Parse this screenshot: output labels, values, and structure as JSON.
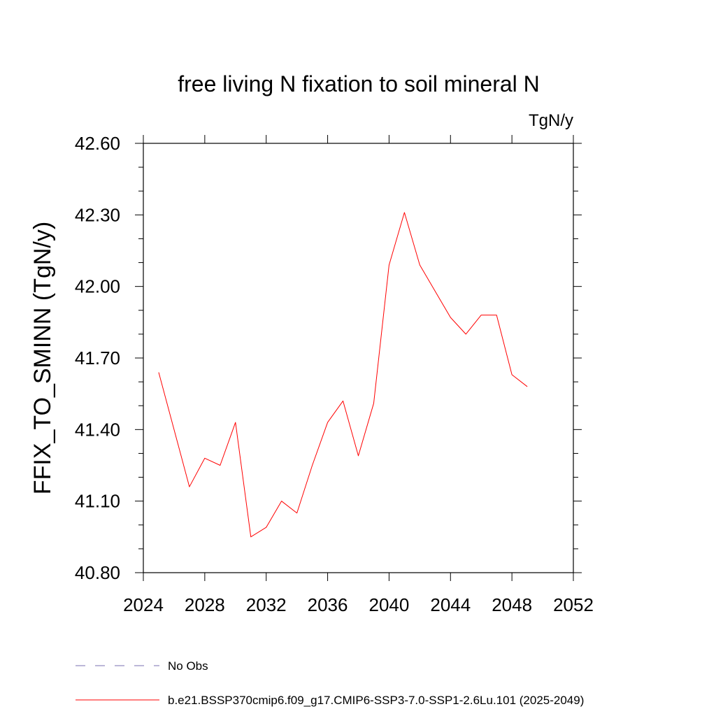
{
  "chart_data": {
    "type": "line",
    "title": "free living N fixation to soil mineral N",
    "units": "TgN/y",
    "ylabel": "FFIX_TO_SMINN  (TgN/y)",
    "xlabel": "",
    "xlim": [
      2024,
      2052
    ],
    "ylim": [
      40.8,
      42.6
    ],
    "x_ticks": [
      2024,
      2028,
      2032,
      2036,
      2040,
      2044,
      2048,
      2052
    ],
    "x_tick_labels": [
      "2024",
      "2028",
      "2032",
      "2036",
      "2040",
      "2044",
      "2048",
      "2052"
    ],
    "y_ticks": [
      40.8,
      41.1,
      41.4,
      41.7,
      42.0,
      42.3,
      42.6
    ],
    "y_tick_labels": [
      "40.80",
      "41.10",
      "41.40",
      "41.70",
      "42.00",
      "42.30",
      "42.60"
    ],
    "grid": false,
    "legend_position": "bottom",
    "series": [
      {
        "name": "b.e21.BSSP370cmip6.f09_g17.CMIP6-SSP3-7.0-SSP1-2.6Lu.101 (2025-2049)",
        "color": "#ff0000",
        "dash": "solid",
        "x": [
          2025,
          2026,
          2027,
          2028,
          2029,
          2030,
          2031,
          2032,
          2033,
          2034,
          2035,
          2036,
          2037,
          2038,
          2039,
          2040,
          2041,
          2042,
          2043,
          2044,
          2045,
          2046,
          2047,
          2048,
          2049
        ],
        "y": [
          41.64,
          41.4,
          41.16,
          41.28,
          41.25,
          41.43,
          40.95,
          40.99,
          41.1,
          41.05,
          41.25,
          41.43,
          41.52,
          41.29,
          41.51,
          42.09,
          42.31,
          42.09,
          41.98,
          41.87,
          41.8,
          41.88,
          41.88,
          41.63,
          41.58
        ]
      }
    ],
    "legend": [
      {
        "label": "No Obs",
        "color": "#7a6fb0",
        "dash": "dashed"
      },
      {
        "label": "b.e21.BSSP370cmip6.f09_g17.CMIP6-SSP3-7.0-SSP1-2.6Lu.101 (2025-2049)",
        "color": "#ff0000",
        "dash": "solid"
      }
    ]
  }
}
